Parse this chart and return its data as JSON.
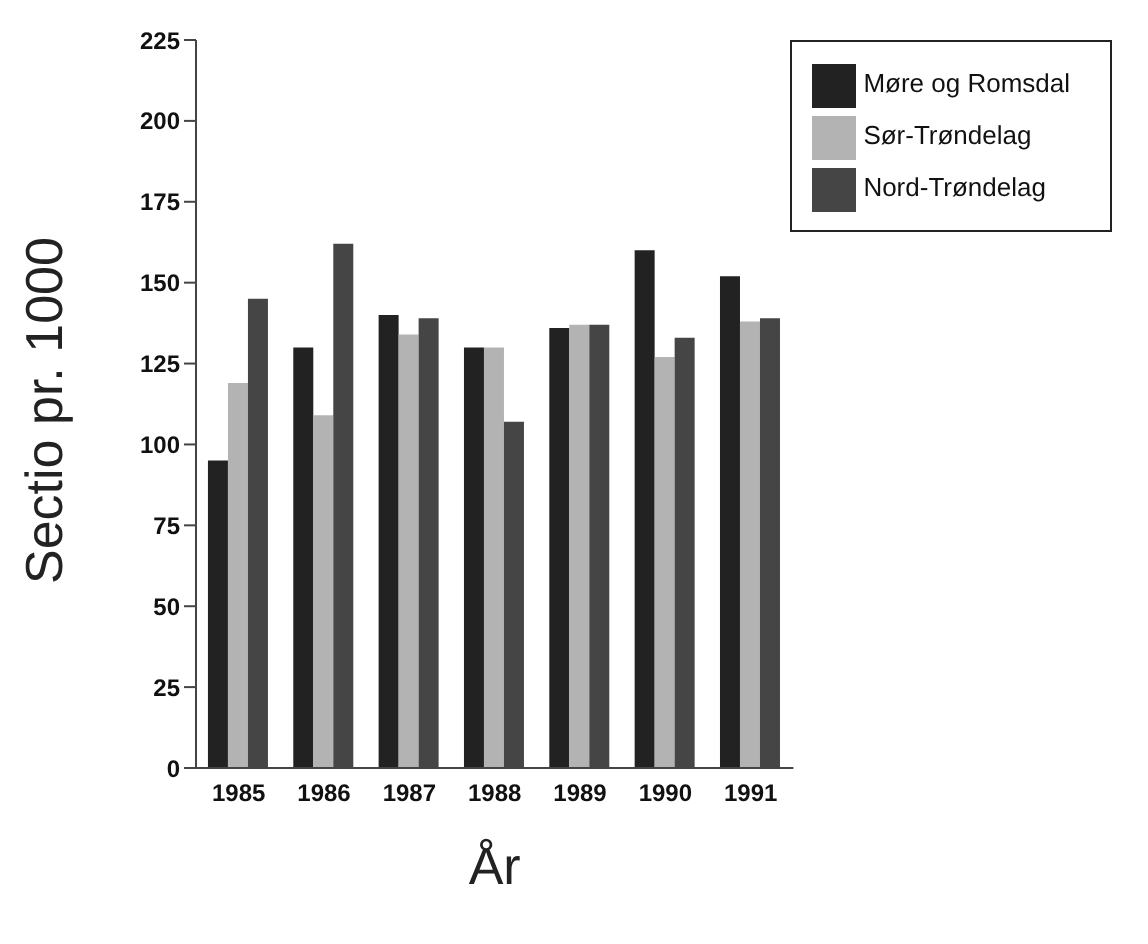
{
  "chart_data": {
    "type": "bar",
    "xlabel": "År",
    "ylabel": "Sectio pr. 1000",
    "categories": [
      "1985",
      "1986",
      "1987",
      "1988",
      "1989",
      "1990",
      "1991"
    ],
    "series": [
      {
        "name": "Møre og Romsdal",
        "color": "#222222",
        "values": [
          95,
          130,
          140,
          130,
          136,
          160,
          152
        ]
      },
      {
        "name": "Sør-Trøndelag",
        "color": "#b3b3b3",
        "values": [
          119,
          109,
          134,
          130,
          137,
          127,
          138
        ]
      },
      {
        "name": "Nord-Trøndelag",
        "color": "#454545",
        "values": [
          145,
          162,
          139,
          107,
          137,
          133,
          139
        ]
      }
    ],
    "ylim": [
      0,
      225
    ],
    "yticks": [
      0,
      25,
      50,
      75,
      100,
      125,
      150,
      175,
      200,
      225
    ],
    "grid": false,
    "legend": "top right"
  }
}
